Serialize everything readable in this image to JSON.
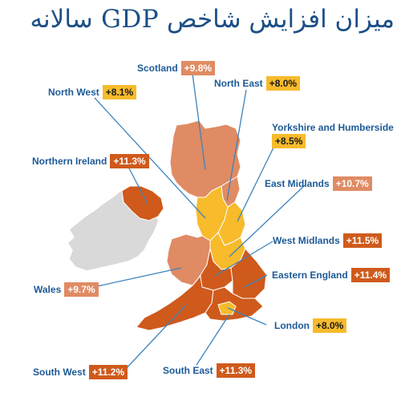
{
  "title": "میزان افزایش شاخص GDP سالانه",
  "colors": {
    "light_band": "#e08b63",
    "dark_band": "#cf5a1c",
    "yellow_band": "#f7bb2b",
    "ireland": "#d8d8d8",
    "leader_line": "#3c83bd"
  },
  "regions": [
    {
      "name": "Scotland",
      "value": "+9.8%"
    },
    {
      "name": "North West",
      "value": "+8.1%"
    },
    {
      "name": "North East",
      "value": "+8.0%"
    },
    {
      "name": "Yorkshire and Humberside",
      "value": "+8.5%"
    },
    {
      "name": "Northern Ireland",
      "value": "+11.3%"
    },
    {
      "name": "East Midlands",
      "value": "+10.7%"
    },
    {
      "name": "West Midlands",
      "value": "+11.5%"
    },
    {
      "name": "Eastern England",
      "value": "+11.4%"
    },
    {
      "name": "Wales",
      "value": "+9.7%"
    },
    {
      "name": "London",
      "value": "+8.0%"
    },
    {
      "name": "South West",
      "value": "+11.2%"
    },
    {
      "name": "South East",
      "value": "+11.3%"
    }
  ]
}
